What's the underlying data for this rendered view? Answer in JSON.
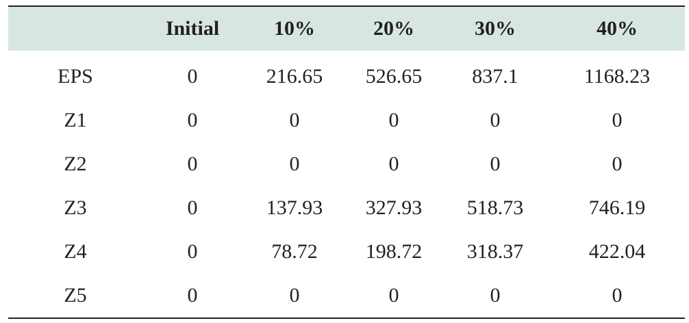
{
  "table": {
    "headers": [
      "",
      "Initial",
      "10%",
      "20%",
      "30%",
      "40%"
    ],
    "rows": [
      {
        "label": "EPS",
        "values": [
          "0",
          "216.65",
          "526.65",
          "837.1",
          "1168.23"
        ]
      },
      {
        "label": "Z1",
        "values": [
          "0",
          "0",
          "0",
          "0",
          "0"
        ]
      },
      {
        "label": "Z2",
        "values": [
          "0",
          "0",
          "0",
          "0",
          "0"
        ]
      },
      {
        "label": "Z3",
        "values": [
          "0",
          "137.93",
          "327.93",
          "518.73",
          "746.19"
        ]
      },
      {
        "label": "Z4",
        "values": [
          "0",
          "78.72",
          "198.72",
          "318.37",
          "422.04"
        ]
      },
      {
        "label": "Z5",
        "values": [
          "0",
          "0",
          "0",
          "0",
          "0"
        ]
      }
    ]
  },
  "colors": {
    "header_background": "#d7e6e3",
    "text": "#231f20",
    "rule": "#231f20"
  }
}
